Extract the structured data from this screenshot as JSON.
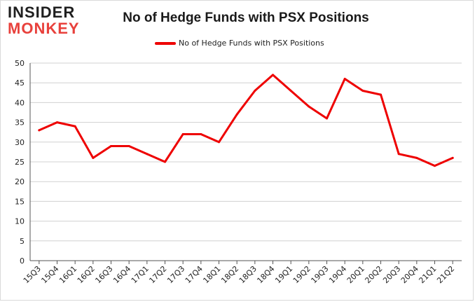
{
  "logo": {
    "line1": "INSIDER",
    "line2": "MONKEY"
  },
  "colors": {
    "series": "#ee0000",
    "grid": "#d0d0d0",
    "axis": "#555555",
    "logo_red": "#e8413c"
  },
  "chart_data": {
    "type": "line",
    "title": "No of Hedge Funds with PSX Positions",
    "xlabel": "",
    "ylabel": "",
    "categories": [
      "15Q3",
      "15Q4",
      "16Q1",
      "16Q2",
      "16Q3",
      "16Q4",
      "17Q1",
      "17Q2",
      "17Q3",
      "17Q4",
      "18Q1",
      "18Q2",
      "18Q3",
      "18Q4",
      "19Q1",
      "19Q2",
      "19Q3",
      "19Q4",
      "20Q1",
      "20Q2",
      "20Q3",
      "20Q4",
      "21Q1",
      "21Q2"
    ],
    "series": [
      {
        "name": "No of Hedge Funds with PSX Positions",
        "values": [
          33,
          35,
          34,
          26,
          29,
          29,
          27,
          25,
          32,
          32,
          30,
          37,
          43,
          47,
          43,
          39,
          36,
          46,
          43,
          42,
          27,
          26,
          24,
          26
        ]
      }
    ],
    "ylim": [
      0,
      50
    ],
    "yticks": [
      0,
      5,
      10,
      15,
      20,
      25,
      30,
      35,
      40,
      45,
      50
    ],
    "grid": "horizontal",
    "legend_position": "top-center"
  }
}
